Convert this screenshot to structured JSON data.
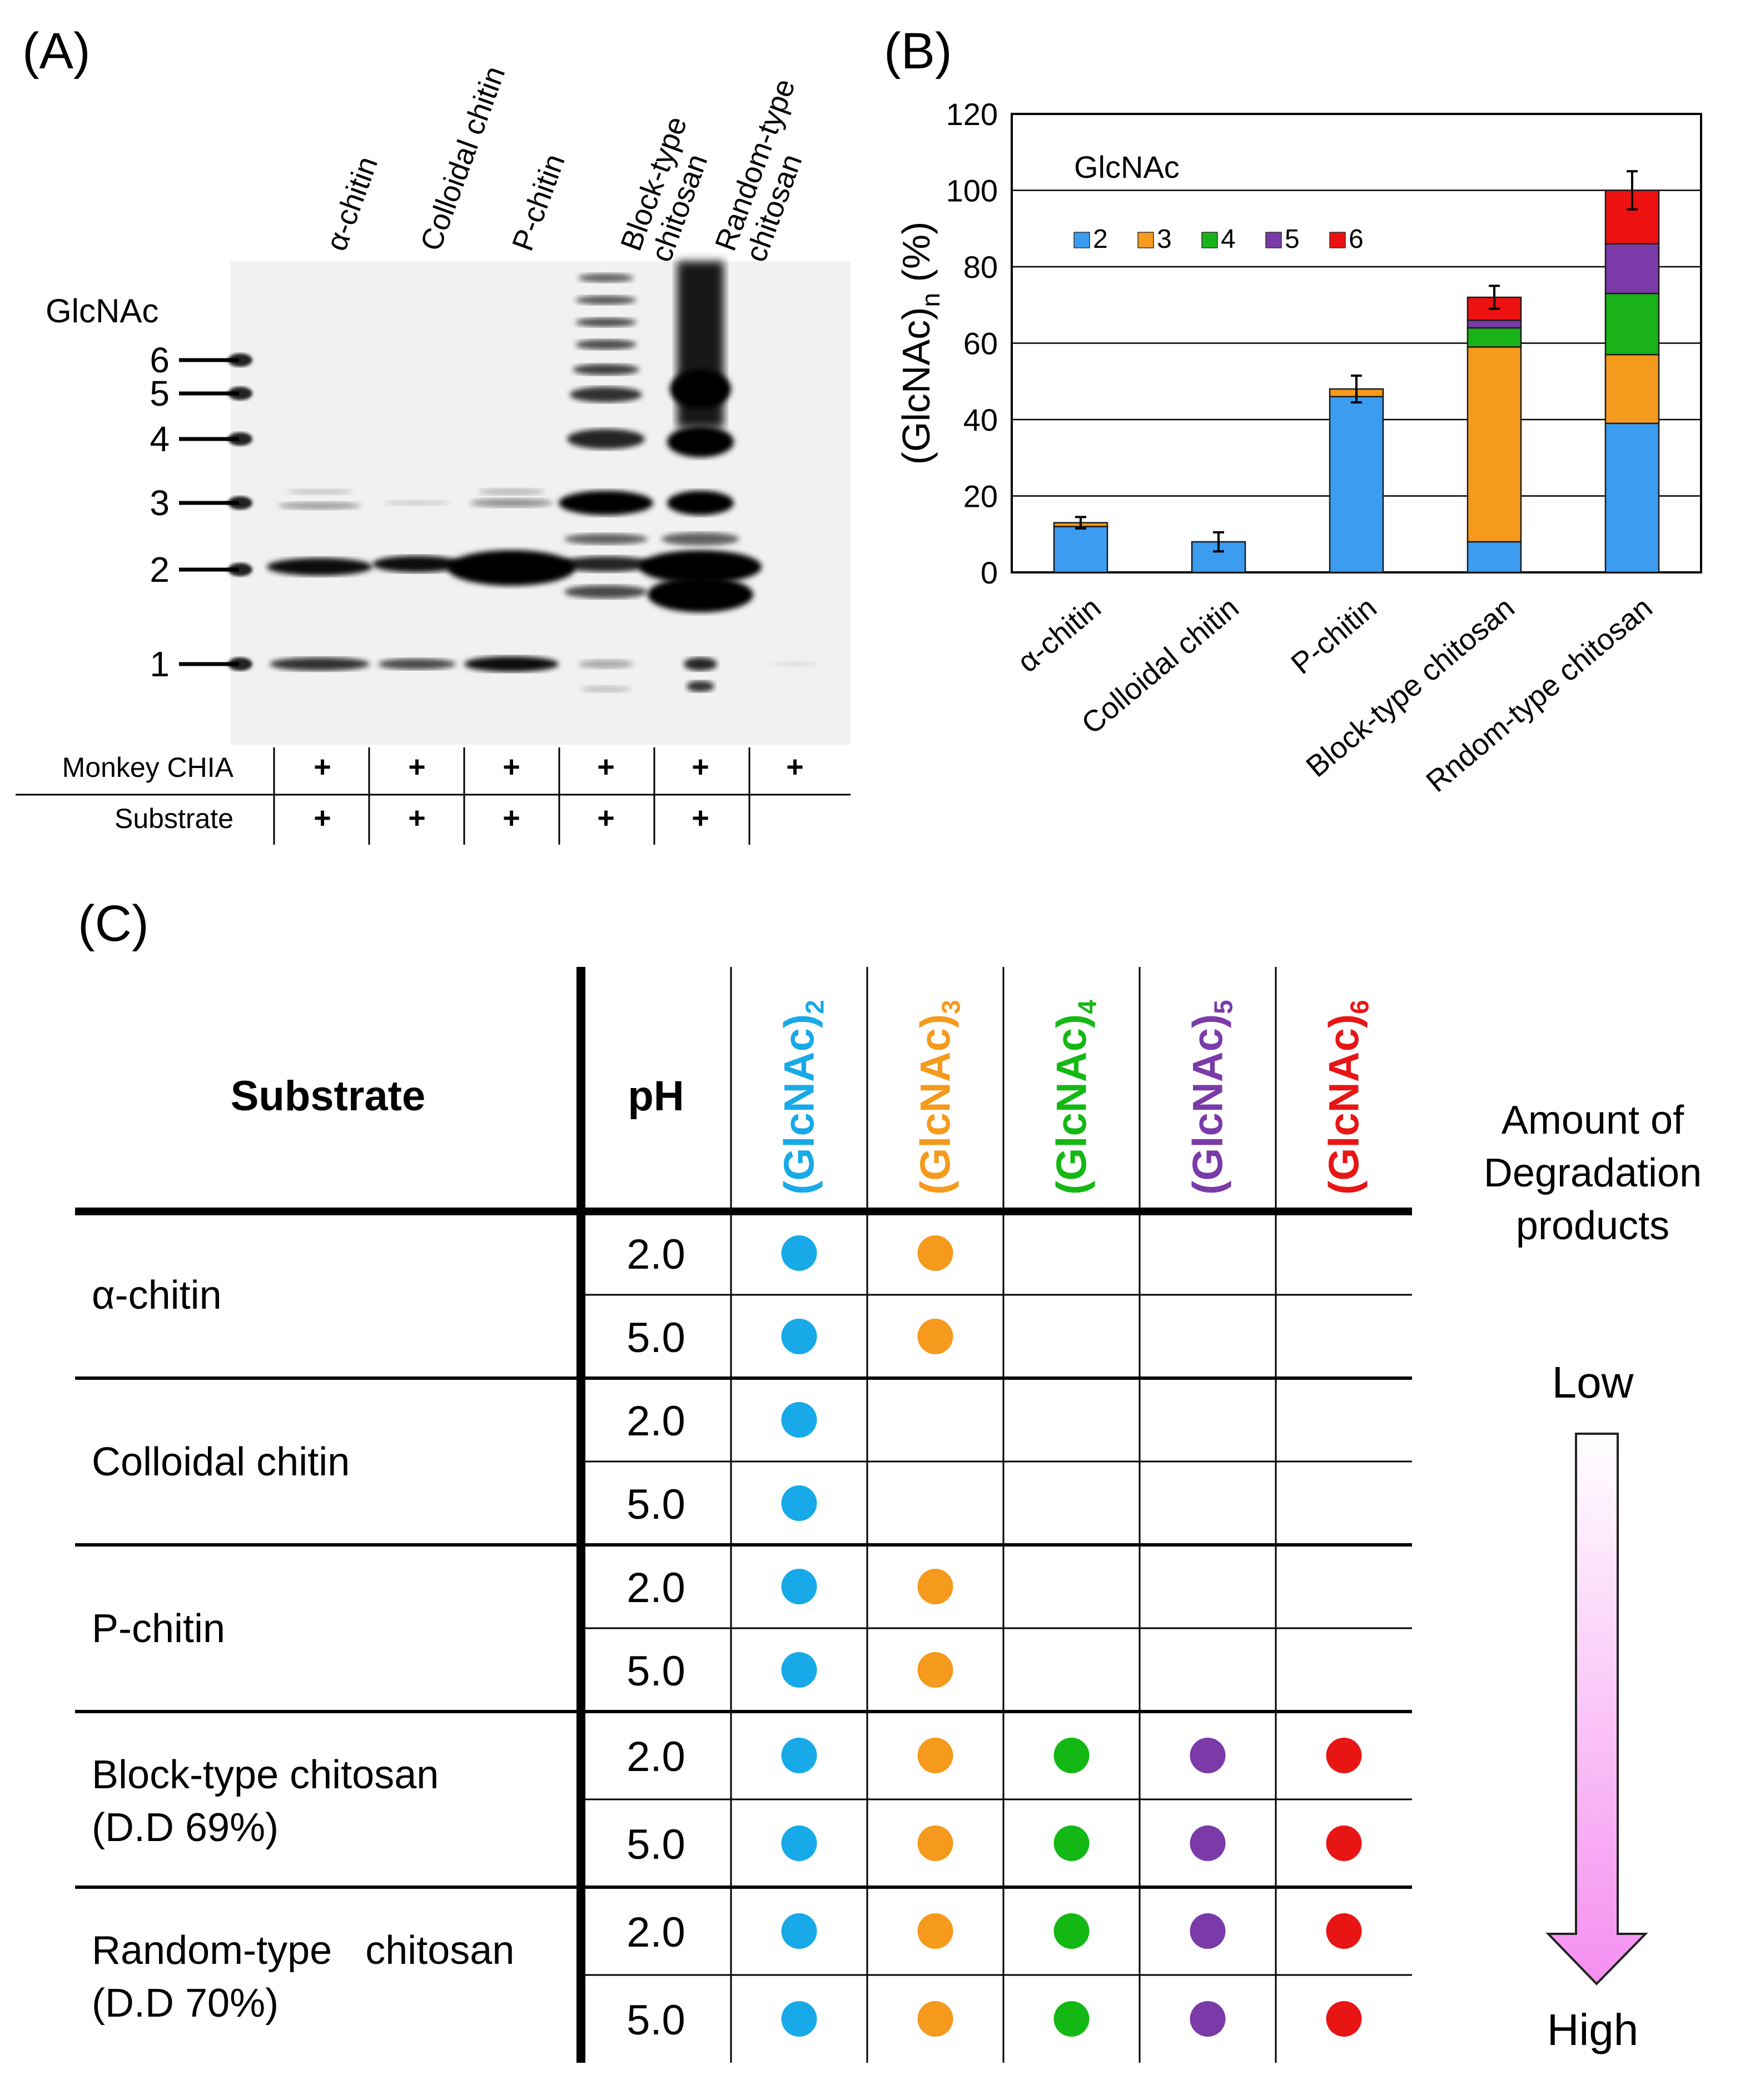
{
  "panels": {
    "a": "(A)",
    "b": "(B)",
    "c": "(C)"
  },
  "gel": {
    "lanes": [
      "α-chitin",
      "Colloidal chitin",
      "P-chitin",
      "Block-type\nchitosan",
      "Random-type\nchitosan"
    ],
    "marker_title": "GlcNAc",
    "markers": [
      "6",
      "5",
      "4",
      "3",
      "2",
      "1"
    ],
    "rows": [
      {
        "label": "Monkey CHIA",
        "marks": [
          "+",
          "+",
          "+",
          "+",
          "+",
          "+"
        ]
      },
      {
        "label": "Substrate",
        "marks": [
          "+",
          "+",
          "+",
          "+",
          "+",
          ""
        ]
      }
    ]
  },
  "chart_data": {
    "type": "bar",
    "stacked": true,
    "title": "GlcNAc",
    "ylabel": "(GlcNAc)n (%)",
    "ylabel_main": "(GlcNAc)",
    "ylabel_sub": "n",
    "ylabel_tail": " (%)",
    "ylim": [
      0,
      120
    ],
    "yticks": [
      "0",
      "20",
      "40",
      "60",
      "80",
      "100",
      "120"
    ],
    "grid": true,
    "categories": [
      "α-chitin",
      "Colloidal chitin",
      "P-chitin",
      "Block-type chitosan",
      "Rndom-type chitosan"
    ],
    "series": [
      {
        "name": "2",
        "color": "#3b9cf0",
        "values": [
          12,
          8,
          46,
          8,
          39
        ]
      },
      {
        "name": "3",
        "color": "#f59a1c",
        "values": [
          1,
          0,
          2,
          51,
          18
        ]
      },
      {
        "name": "4",
        "color": "#19b319",
        "values": [
          0,
          0,
          0,
          5,
          16
        ]
      },
      {
        "name": "5",
        "color": "#7a3aa8",
        "values": [
          0,
          0,
          0,
          2,
          13
        ]
      },
      {
        "name": "6",
        "color": "#ee1111",
        "values": [
          0,
          0,
          0,
          6,
          14
        ]
      }
    ],
    "error_bars": [
      1.5,
      2.5,
      3.5,
      3,
      5
    ],
    "legend_position": "top-left inside"
  },
  "table": {
    "header": {
      "substrate": "Substrate",
      "ph": "pH",
      "products": [
        {
          "main": "(GlcNAc)",
          "sub": "2",
          "color": "#17a9e8"
        },
        {
          "main": "(GlcNAc)",
          "sub": "3",
          "color": "#f59a1c"
        },
        {
          "main": "(GlcNAc)",
          "sub": "4",
          "color": "#14b814"
        },
        {
          "main": "(GlcNAc)",
          "sub": "5",
          "color": "#7a3aa8"
        },
        {
          "main": "(GlcNAc)",
          "sub": "6",
          "color": "#e81515"
        }
      ]
    },
    "groups": [
      {
        "line1": "α-chitin",
        "line2": "",
        "rows": [
          {
            "ph": "2.0",
            "count": 2
          },
          {
            "ph": "5.0",
            "count": 2
          }
        ]
      },
      {
        "line1": "Colloidal chitin",
        "line2": "",
        "rows": [
          {
            "ph": "2.0",
            "count": 1
          },
          {
            "ph": "5.0",
            "count": 1
          }
        ]
      },
      {
        "line1": "P-chitin",
        "line2": "",
        "rows": [
          {
            "ph": "2.0",
            "count": 2
          },
          {
            "ph": "5.0",
            "count": 2
          }
        ]
      },
      {
        "line1": "Block-type chitosan",
        "line2": "(D.D 69%)",
        "rows": [
          {
            "ph": "2.0",
            "count": 5
          },
          {
            "ph": "5.0",
            "count": 5
          }
        ]
      },
      {
        "line1": "Random-type   chitosan",
        "line2": "(D.D 70%)",
        "rows": [
          {
            "ph": "2.0",
            "count": 5
          },
          {
            "ph": "5.0",
            "count": 5
          }
        ]
      }
    ],
    "legend": {
      "title1": "Amount of",
      "title2": "Degradation",
      "title3": "products",
      "low": "Low",
      "high": "High"
    }
  }
}
